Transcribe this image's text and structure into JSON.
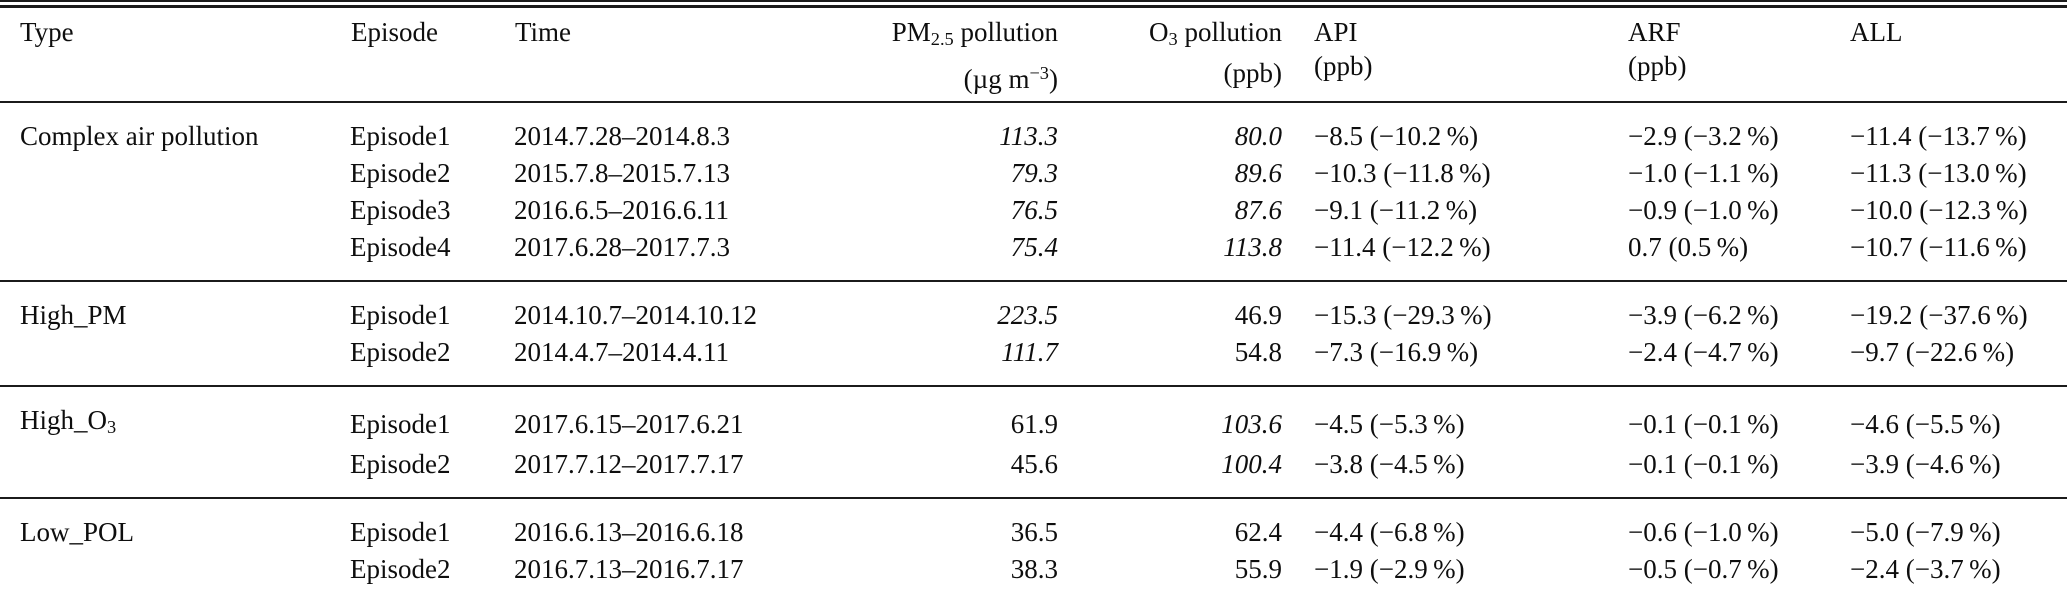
{
  "table": {
    "columns": {
      "type": "Type",
      "episode": "Episode",
      "time": "Time",
      "pm": {
        "base": "PM",
        "sub": "2.5",
        "rest": " pollution",
        "unit_pre": "(µg m",
        "unit_sup": "−3",
        "unit_post": ")"
      },
      "o3": {
        "base": "O",
        "sub": "3",
        "rest": " pollution",
        "unit": "(ppb)"
      },
      "api": {
        "label": "API",
        "unit": "(ppb)"
      },
      "arf": {
        "label": "ARF",
        "unit": "(ppb)"
      },
      "all": {
        "label": "ALL"
      }
    },
    "sections": [
      {
        "type": {
          "base": "Complex air pollution",
          "sub": ""
        },
        "rows": [
          {
            "episode": "Episode1",
            "time": "2014.7.28–2014.8.3",
            "pm": "113.3",
            "pm_italic": true,
            "o3": "80.0",
            "o3_italic": true,
            "api": "−8.5 (−10.2 %)",
            "arf": "−2.9 (−3.2 %)",
            "all": "−11.4 (−13.7 %)"
          },
          {
            "episode": "Episode2",
            "time": "2015.7.8–2015.7.13",
            "pm": "79.3",
            "pm_italic": true,
            "o3": "89.6",
            "o3_italic": true,
            "api": "−10.3 (−11.8 %)",
            "arf": "−1.0 (−1.1 %)",
            "all": "−11.3 (−13.0 %)"
          },
          {
            "episode": "Episode3",
            "time": "2016.6.5–2016.6.11",
            "pm": "76.5",
            "pm_italic": true,
            "o3": "87.6",
            "o3_italic": true,
            "api": "−9.1 (−11.2 %)",
            "arf": "−0.9 (−1.0 %)",
            "all": "−10.0 (−12.3 %)"
          },
          {
            "episode": "Episode4",
            "time": "2017.6.28–2017.7.3",
            "pm": "75.4",
            "pm_italic": true,
            "o3": "113.8",
            "o3_italic": true,
            "api": "−11.4 (−12.2 %)",
            "arf": "0.7 (0.5 %)",
            "all": "−10.7 (−11.6 %)"
          }
        ]
      },
      {
        "type": {
          "base": "High_PM",
          "sub": ""
        },
        "rows": [
          {
            "episode": "Episode1",
            "time": "2014.10.7–2014.10.12",
            "pm": "223.5",
            "pm_italic": true,
            "o3": "46.9",
            "o3_italic": false,
            "api": "−15.3 (−29.3 %)",
            "arf": "−3.9 (−6.2 %)",
            "all": "−19.2 (−37.6 %)"
          },
          {
            "episode": "Episode2",
            "time": "2014.4.7–2014.4.11",
            "pm": "111.7",
            "pm_italic": true,
            "o3": "54.8",
            "o3_italic": false,
            "api": "−7.3 (−16.9 %)",
            "arf": "−2.4 (−4.7 %)",
            "all": "−9.7 (−22.6 %)"
          }
        ]
      },
      {
        "type": {
          "base": "High_O",
          "sub": "3"
        },
        "rows": [
          {
            "episode": "Episode1",
            "time": "2017.6.15–2017.6.21",
            "pm": "61.9",
            "pm_italic": false,
            "o3": "103.6",
            "o3_italic": true,
            "api": "−4.5 (−5.3 %)",
            "arf": "−0.1 (−0.1 %)",
            "all": "−4.6 (−5.5 %)"
          },
          {
            "episode": "Episode2",
            "time": "2017.7.12–2017.7.17",
            "pm": "45.6",
            "pm_italic": false,
            "o3": "100.4",
            "o3_italic": true,
            "api": "−3.8 (−4.5 %)",
            "arf": "−0.1 (−0.1 %)",
            "all": "−3.9 (−4.6 %)"
          }
        ]
      },
      {
        "type": {
          "base": "Low_POL",
          "sub": ""
        },
        "rows": [
          {
            "episode": "Episode1",
            "time": "2016.6.13–2016.6.18",
            "pm": "36.5",
            "pm_italic": false,
            "o3": "62.4",
            "o3_italic": false,
            "api": "−4.4 (−6.8 %)",
            "arf": "−0.6 (−1.0 %)",
            "all": "−5.0 (−7.9 %)"
          },
          {
            "episode": "Episode2",
            "time": "2016.7.13–2016.7.17",
            "pm": "38.3",
            "pm_italic": false,
            "o3": "55.9",
            "o3_italic": false,
            "api": "−1.9 (−2.9 %)",
            "arf": "−0.5 (−0.7 %)",
            "all": "−2.4 (−3.7 %)"
          }
        ]
      }
    ]
  }
}
